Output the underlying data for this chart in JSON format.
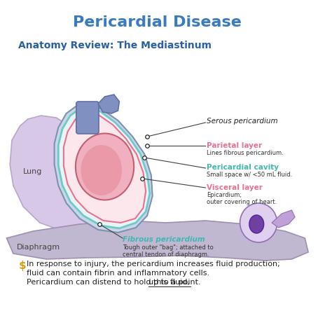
{
  "title": "Pericardial Disease",
  "subtitle": "Anatomy Review: The Mediastinum",
  "title_color": "#3a7abf",
  "subtitle_color": "#2a5fa5",
  "bg_color": "#ffffff",
  "labels": {
    "serous_pericardium": "Serous pericardium",
    "parietal_layer": "Parietal layer",
    "parietal_desc": "Lines fibrous pericardium.",
    "pericardial_cavity": "Pericardial cavity",
    "pericardial_desc": "Small space w/ <50 mL fluid.",
    "visceral_layer": "Visceral layer",
    "visceral_desc": "Epicardium;\nouter covering of heart.",
    "fibrous_pericardium": "Fibrous pericardium",
    "fibrous_desc": "Tough outer \"bag\"; attached to\ncentral tendon of diaphragm.",
    "lung": "Lung",
    "diaphragm": "Diaphragm"
  },
  "note_symbol_color": "#d4a017",
  "note_line1": "In response to injury, the pericardium increases fluid production;",
  "note_line2": "fluid can contain fibrin and inflammatory cells.",
  "note_line3_prefix": "Pericardium can distend to hold this fluid, ",
  "note_line3_underline": "up to a point.",
  "colors": {
    "lung": "#d8c8e8",
    "lung_stroke": "#b8a8c8",
    "diaphragm": "#c0b8d0",
    "diaphragm_stroke": "#a090b0",
    "heart_outer": "#f0b0c0",
    "heart_inner": "#e890a0",
    "heart_stroke": "#c06070",
    "fibrous_peri": "#c8d8e8",
    "fibrous_stroke": "#8090b0",
    "serous_peri": "#70c8c8",
    "vessel_blue": "#8090c0",
    "vessel_stroke": "#6070a0",
    "parietal_color": "#e87090",
    "cavity_color": "#40b8b0",
    "visceral_color": "#e87090",
    "fibrous_label_color": "#40b8b0",
    "line_color": "#404040",
    "dot_color": "#101010"
  }
}
